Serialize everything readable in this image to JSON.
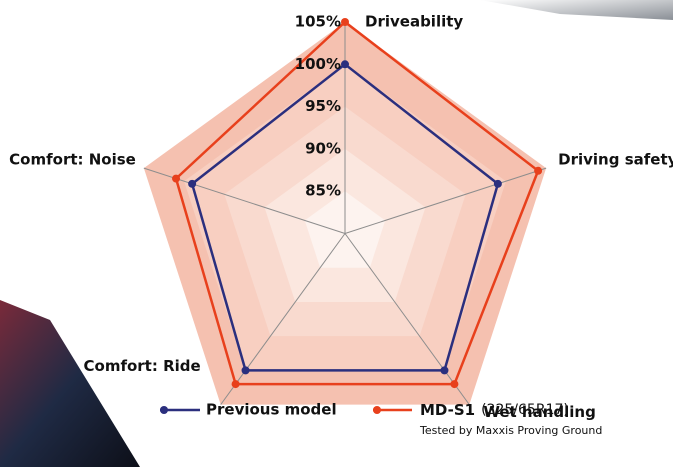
{
  "chart_data": {
    "type": "radar",
    "categories": [
      "Driveability",
      "Driving safety",
      "Wet handling",
      "Comfort: Ride",
      "Comfort: Noise"
    ],
    "series": [
      {
        "name": "Previous model",
        "color": "#2b2f7e",
        "values": [
          100,
          99,
          100,
          100,
          99
        ]
      },
      {
        "name": "MD-S1",
        "spec": "(225/65R17)",
        "color": "#e8401c",
        "values": [
          105,
          104,
          102,
          102,
          101
        ]
      }
    ],
    "rlim": [
      80,
      105
    ],
    "rticks": [
      {
        "value": 85,
        "label": "85%"
      },
      {
        "value": 90,
        "label": "90%"
      },
      {
        "value": 95,
        "label": "95%"
      },
      {
        "value": 100,
        "label": "100%"
      },
      {
        "value": 105,
        "label": "105%"
      }
    ],
    "footnote": "Tested by Maxxis Proving Ground"
  }
}
